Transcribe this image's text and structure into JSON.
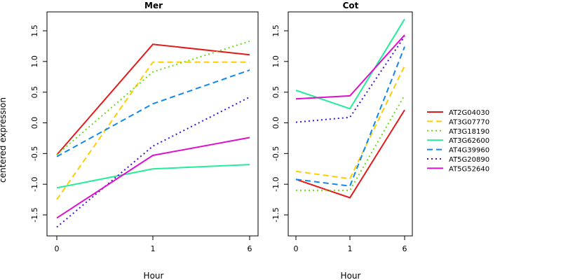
{
  "chart_data": [
    {
      "type": "line",
      "title": "Mer",
      "xlabel": "Hour",
      "ylabel": "centered expression",
      "categories": [
        "0",
        "1",
        "6"
      ],
      "ylim": [
        -1.8,
        1.8
      ],
      "yticks": [
        "-1.5",
        "-1.0",
        "-0.5",
        "0.0",
        "0.5",
        "1.0",
        "1.5"
      ],
      "series": [
        {
          "name": "AT2G04030",
          "values": [
            -0.52,
            1.28,
            1.11
          ]
        },
        {
          "name": "AT3G07770",
          "values": [
            -1.25,
            0.99,
            0.99
          ]
        },
        {
          "name": "AT3G18190",
          "values": [
            -0.52,
            0.83,
            1.33
          ]
        },
        {
          "name": "AT3G62600",
          "values": [
            -1.06,
            -0.75,
            -0.68
          ]
        },
        {
          "name": "AT4G39960",
          "values": [
            -0.55,
            0.31,
            0.86
          ]
        },
        {
          "name": "AT5G20890",
          "values": [
            -1.7,
            -0.38,
            0.42
          ]
        },
        {
          "name": "AT5G52640",
          "values": [
            -1.55,
            -0.53,
            -0.24
          ]
        }
      ]
    },
    {
      "type": "line",
      "title": "Cot",
      "xlabel": "Hour",
      "ylabel": "",
      "categories": [
        "0",
        "1",
        "6"
      ],
      "ylim": [
        -1.8,
        1.8
      ],
      "yticks": [
        "-1.5",
        "-1.0",
        "-0.5",
        "0.0",
        "0.5",
        "1.0",
        "1.5"
      ],
      "series": [
        {
          "name": "AT2G04030",
          "values": [
            -0.92,
            -1.22,
            0.21
          ]
        },
        {
          "name": "AT3G07770",
          "values": [
            -0.79,
            -0.91,
            0.93
          ]
        },
        {
          "name": "AT3G18190",
          "values": [
            -1.1,
            -1.1,
            0.45
          ]
        },
        {
          "name": "AT3G62600",
          "values": [
            0.53,
            0.23,
            1.69
          ]
        },
        {
          "name": "AT4G39960",
          "values": [
            -0.92,
            -1.03,
            1.24
          ]
        },
        {
          "name": "AT5G20890",
          "values": [
            0.01,
            0.09,
            1.41
          ]
        },
        {
          "name": "AT5G52640",
          "values": [
            0.39,
            0.44,
            1.43
          ]
        }
      ]
    }
  ],
  "legend": {
    "placement": "right",
    "items": [
      {
        "name": "AT2G04030",
        "color": "#e31a1c",
        "dash": "solid"
      },
      {
        "name": "AT3G07770",
        "color": "#ffcc00",
        "dash": "dashed"
      },
      {
        "name": "AT3G18190",
        "color": "#66dd11",
        "dash": "dotted"
      },
      {
        "name": "AT3G62600",
        "color": "#22ee99",
        "dash": "solid"
      },
      {
        "name": "AT4G39960",
        "color": "#1188ee",
        "dash": "dashed"
      },
      {
        "name": "AT5G20890",
        "color": "#4411cc",
        "dash": "dotted"
      },
      {
        "name": "AT5G52640",
        "color": "#dd11cc",
        "dash": "solid"
      }
    ]
  }
}
